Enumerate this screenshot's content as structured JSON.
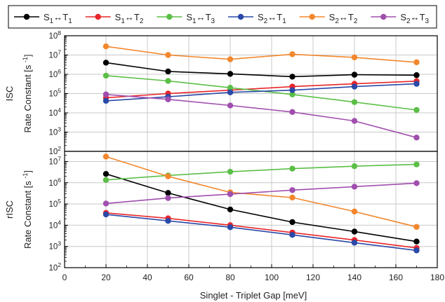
{
  "chart_data": {
    "type": "line",
    "x": [
      20,
      50,
      80,
      110,
      140,
      170
    ],
    "xlabel": "Singlet - Triplet Gap [meV]",
    "xlim": [
      0,
      180
    ],
    "xticks": [
      0,
      20,
      40,
      60,
      80,
      100,
      120,
      140,
      160,
      180
    ],
    "legend": {
      "placement": "top",
      "entries": [
        {
          "S": "1",
          "T": "1"
        },
        {
          "S": "1",
          "T": "2"
        },
        {
          "S": "1",
          "T": "3"
        },
        {
          "S": "2",
          "T": "1"
        },
        {
          "S": "2",
          "T": "2"
        },
        {
          "S": "2",
          "T": "3"
        }
      ]
    },
    "colors": [
      "#000000",
      "#e8262b",
      "#5bbf46",
      "#2a49a8",
      "#f2872c",
      "#a04fae"
    ],
    "grid": true,
    "scale": "log",
    "panels": [
      {
        "name": "ISC",
        "ylabel": "Rate Constant [s",
        "ylabel_sup": "-1",
        "ylim": [
          100,
          100000000
        ],
        "yticks": [
          2,
          3,
          4,
          5,
          6,
          7,
          8
        ],
        "series": [
          {
            "values": [
              4000000,
              1400000,
              1050000,
              750000,
              950000,
              900000
            ]
          },
          {
            "values": [
              60000,
              100000,
              150000,
              230000,
              320000,
              440000
            ]
          },
          {
            "values": [
              850000,
              450000,
              200000,
              90000,
              36000,
              14000
            ]
          },
          {
            "values": [
              42000,
              68000,
              115000,
              150000,
              230000,
              320000
            ]
          },
          {
            "values": [
              28000000,
              10000000,
              6000000,
              11000000,
              7500000,
              4200000
            ]
          },
          {
            "values": [
              90000,
              50000,
              24000,
              11000,
              3800,
              520
            ]
          }
        ]
      },
      {
        "name": "rISC",
        "ylabel": "Rate Constant [s",
        "ylabel_sup": "-1",
        "ylim": [
          100,
          30000000
        ],
        "yticks": [
          2,
          3,
          4,
          5,
          6,
          7
        ],
        "series": [
          {
            "values": [
              2600000,
              330000,
              55000,
              14000,
              5000,
              1700
            ]
          },
          {
            "values": [
              38000,
              21000,
              10000,
              4500,
              2000,
              850
            ]
          },
          {
            "values": [
              1350000,
              2200000,
              3300000,
              4600000,
              6000000,
              7300000
            ]
          },
          {
            "values": [
              32000,
              16000,
              8000,
              3500,
              1500,
              650
            ]
          },
          {
            "values": [
              17000000,
              2000000,
              350000,
              200000,
              44000,
              8300
            ]
          },
          {
            "values": [
              105000,
              190000,
              290000,
              450000,
              650000,
              950000
            ]
          }
        ]
      }
    ]
  }
}
